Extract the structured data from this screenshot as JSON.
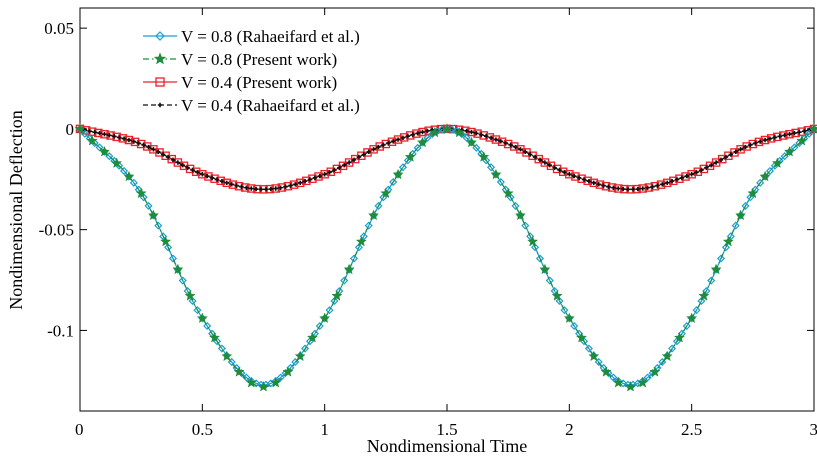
{
  "chart_data": {
    "type": "line",
    "title": "",
    "xlabel": "Nondimensional Time",
    "ylabel": "Nondimensional Deflection",
    "xlim": [
      0,
      3
    ],
    "ylim": [
      -0.14,
      0.06
    ],
    "xticks": [
      0,
      0.5,
      1,
      1.5,
      2,
      2.5,
      3
    ],
    "xtick_labels": [
      "0",
      "0.5",
      "1",
      "1.5",
      "2",
      "2.5",
      "3"
    ],
    "yticks": [
      0.05,
      0,
      -0.05,
      -0.1
    ],
    "ytick_labels": [
      "0.05",
      "0",
      "-0.05",
      "-0.1"
    ],
    "grid": false,
    "legend_position": "top-left",
    "series": [
      {
        "name": "V = 0.8 (Rahaeifard et al.)",
        "color": "#1a9fd0",
        "marker": "diamond",
        "line_style": "solid",
        "x": [
          0,
          0.25,
          0.5,
          0.75,
          1.0,
          1.25,
          1.5,
          1.75,
          2.0,
          2.25,
          2.5,
          2.75,
          3.0
        ],
        "y": [
          0,
          -0.032,
          -0.094,
          -0.127,
          -0.094,
          -0.032,
          0,
          -0.032,
          -0.094,
          -0.127,
          -0.094,
          -0.032,
          0
        ]
      },
      {
        "name": "V = 0.8 (Present work)",
        "color": "#1e8c3a",
        "marker": "star",
        "line_style": "dashdot",
        "x": [
          0,
          0.25,
          0.5,
          0.75,
          1.0,
          1.25,
          1.5,
          1.75,
          2.0,
          2.25,
          2.5,
          2.75,
          3.0
        ],
        "y": [
          0,
          -0.032,
          -0.094,
          -0.128,
          -0.094,
          -0.032,
          0,
          -0.032,
          -0.094,
          -0.128,
          -0.094,
          -0.032,
          0
        ]
      },
      {
        "name": "V = 0.4 (Present work)",
        "color": "#e8202a",
        "marker": "square",
        "line_style": "solid",
        "x": [
          0,
          0.25,
          0.5,
          0.75,
          1.0,
          1.25,
          1.5,
          1.75,
          2.0,
          2.25,
          2.5,
          2.75,
          3.0
        ],
        "y": [
          0,
          -0.0075,
          -0.0225,
          -0.03,
          -0.0225,
          -0.0075,
          0,
          -0.0075,
          -0.0225,
          -0.03,
          -0.0225,
          -0.0075,
          0
        ]
      },
      {
        "name": "V = 0.4 (Rahaeifard et al.)",
        "color": "#111111",
        "marker": "plus",
        "line_style": "dashed",
        "x": [
          0,
          0.25,
          0.5,
          0.75,
          1.0,
          1.25,
          1.5,
          1.75,
          2.0,
          2.25,
          2.5,
          2.75,
          3.0
        ],
        "y": [
          0,
          -0.0075,
          -0.0225,
          -0.03,
          -0.0225,
          -0.0075,
          0,
          -0.0075,
          -0.0225,
          -0.03,
          -0.0225,
          -0.0075,
          0
        ]
      }
    ]
  }
}
